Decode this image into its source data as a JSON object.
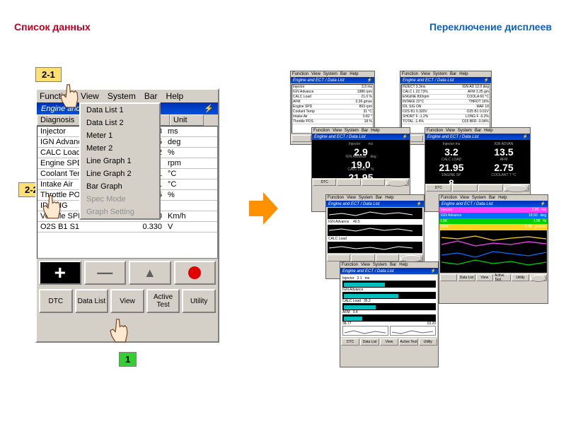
{
  "headers": {
    "left": "Список данных",
    "right": "Переключение дисплеев"
  },
  "callouts": {
    "c21": "2-1",
    "c22": "2-2",
    "c1": "1"
  },
  "menu": {
    "function": "Function",
    "view": "View",
    "system": "System",
    "bar": "Bar",
    "help": "Help"
  },
  "title": "Engine and ECT / Data List",
  "columns": {
    "diagnosis": "Diagnosis",
    "value": "Value",
    "unit": "Unit"
  },
  "rows": [
    {
      "n": "Injector",
      "v": "3",
      "u": "ms"
    },
    {
      "n": "IGN Advance",
      "v": "15",
      "u": "deg"
    },
    {
      "n": "CALC Load",
      "v": "2",
      "u": "%"
    },
    {
      "n": "Engine SPD",
      "v": "",
      "u": "rpm"
    },
    {
      "n": "Coolant Temp",
      "v": "1",
      "u": "°C"
    },
    {
      "n": "Intake Air",
      "v": "1",
      "u": "°C"
    },
    {
      "n": "Throttle POS",
      "v": "5",
      "u": "%"
    },
    {
      "n": "IDL SIG",
      "v": "",
      "u": ""
    },
    {
      "n": "Vehicle SPD",
      "v": "0",
      "u": "Km/h"
    },
    {
      "n": "O2S B1 S1",
      "v": "0.330",
      "u": "V"
    }
  ],
  "dropdown": {
    "items": [
      "Data List 1",
      "Data List 2",
      "Meter 1",
      "Meter 2",
      "Line Graph 1",
      "Line Graph 2",
      "Bar Graph"
    ],
    "disabled": [
      "Spec Mode",
      "Graph Setting"
    ]
  },
  "buttons": {
    "dtc": "DTC",
    "datalist": "Data List",
    "view": "View",
    "activetest": "Active Test",
    "utility": "Utility"
  },
  "meter": {
    "main": {
      "injector": "2.9",
      "advance": "19.0",
      "load_a": "21.95"
    },
    "right": {
      "a": "3.2",
      "b": "13.5",
      "c": "21.95",
      "d": "2.75",
      "e": "8"
    }
  },
  "color_legend": {
    "rows": [
      {
        "label": "Injector",
        "v": "2.90",
        "u": "ms",
        "bg": "#ff40ff"
      },
      {
        "label": "IGN Advance",
        "v": "18.50",
        "u": "deg",
        "bg": "#0070ff"
      },
      {
        "label": "LSK",
        "v": "1.56",
        "u": "%",
        "bg": "#00d000"
      },
      {
        "label": "AFM",
        "v": "0.36",
        "u": "gm/sec",
        "bg": "#ffd020"
      }
    ]
  },
  "mini_table": {
    "rows": [
      {
        "n": "Injector",
        "v": "3.3 ms"
      },
      {
        "n": "IGN Advance",
        "v": "1986 rpm"
      },
      {
        "n": "CALC Load",
        "v": "21.0 %"
      },
      {
        "n": "AFM",
        "v": "0.36 gmse"
      },
      {
        "n": "Engine SPD",
        "v": "893 rpm"
      },
      {
        "n": "Coolant Temp",
        "v": "31 °C"
      },
      {
        "n": "Intake Air",
        "v": "0.82 °"
      },
      {
        "n": "Throttle POS",
        "v": "18 %"
      },
      {
        "n": "IDL SIG",
        "v": ""
      },
      {
        "n": "Vehicle SP",
        "v": "0 km/h"
      }
    ]
  },
  "mini_table2": {
    "rows": [
      {
        "n": "INJECT  3.3ms",
        "v": "IGN AD  12.0 deg"
      },
      {
        "n": "CALC L  22.73%",
        "v": "AFM  3.25 gm"
      },
      {
        "n": "ENGINE  893rpm",
        "v": "COOLA  60 °C"
      },
      {
        "n": "INTAKE  22°C",
        "v": "THROT  16%"
      },
      {
        "n": "IDL SIG  ON",
        "v": "MAF  18"
      },
      {
        "n": "O2S B1  0.320V",
        "v": "O25 B1  0.01V"
      },
      {
        "n": "SHORT F  -1.2%",
        "v": "LONG F  -0.2%"
      },
      {
        "n": "TOTAL   -1.4%",
        "v": "O25 BFR  -0.04%"
      },
      {
        "n": "FUEL S  CL",
        "v": ""
      },
      {
        "n": "FC IDL  OFF",
        "v": ""
      }
    ]
  },
  "colors": {
    "accent_red": "#c00020",
    "accent_blue": "#1060c0",
    "arrow": "#ff9000",
    "callout_yellow": "#ffe070",
    "callout_green": "#30d030"
  }
}
